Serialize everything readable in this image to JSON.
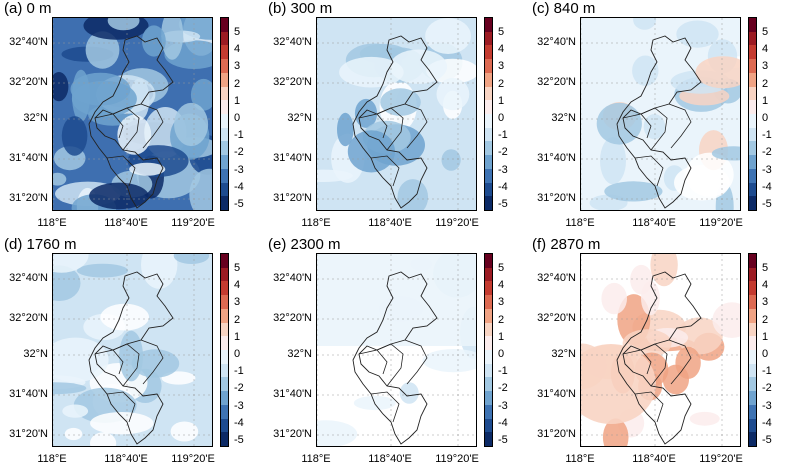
{
  "panels": [
    {
      "title": "(a) 0 m"
    },
    {
      "title": "(b) 300 m"
    },
    {
      "title": "(c) 840 m"
    },
    {
      "title": "(d) 1760 m"
    },
    {
      "title": "(e) 2300 m"
    },
    {
      "title": "(f) 2870 m"
    }
  ],
  "y_ticks": [
    "32°40'N",
    "32°20'N",
    "32°N",
    "31°40'N",
    "31°20'N"
  ],
  "x_ticks": [
    "118°E",
    "118°40'E",
    "119°20'E"
  ],
  "colorbar": {
    "labels": [
      "5",
      "4",
      "3",
      "2",
      "1",
      "0",
      "-1",
      "-2",
      "-3",
      "-4",
      "-5"
    ],
    "colors": [
      "#67001f",
      "#9c1b23",
      "#c43b30",
      "#dd6a52",
      "#f0a384",
      "#f8d4c3",
      "#fbecec",
      "#eaf4fb",
      "#cfe4f3",
      "#a2c8e2",
      "#6fa3cf",
      "#3e73b3",
      "#1d4b8f",
      "#0c2a66"
    ]
  }
}
